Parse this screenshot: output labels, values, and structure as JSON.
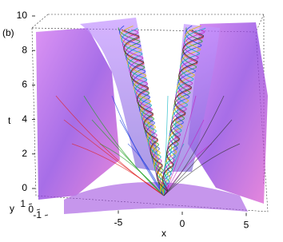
{
  "chart_data": {
    "type": "surface3d",
    "panel_label": "(b)",
    "x_label": "x",
    "y_label": "y",
    "z_label": "t",
    "xlim": [
      -7,
      7
    ],
    "xticks": [
      -5,
      0,
      5
    ],
    "ylim": [
      -1,
      1
    ],
    "yticks": [
      -1,
      0,
      1
    ],
    "zlim": [
      0,
      10
    ],
    "zticks": [
      0,
      2,
      4,
      6,
      8,
      10
    ]
  }
}
